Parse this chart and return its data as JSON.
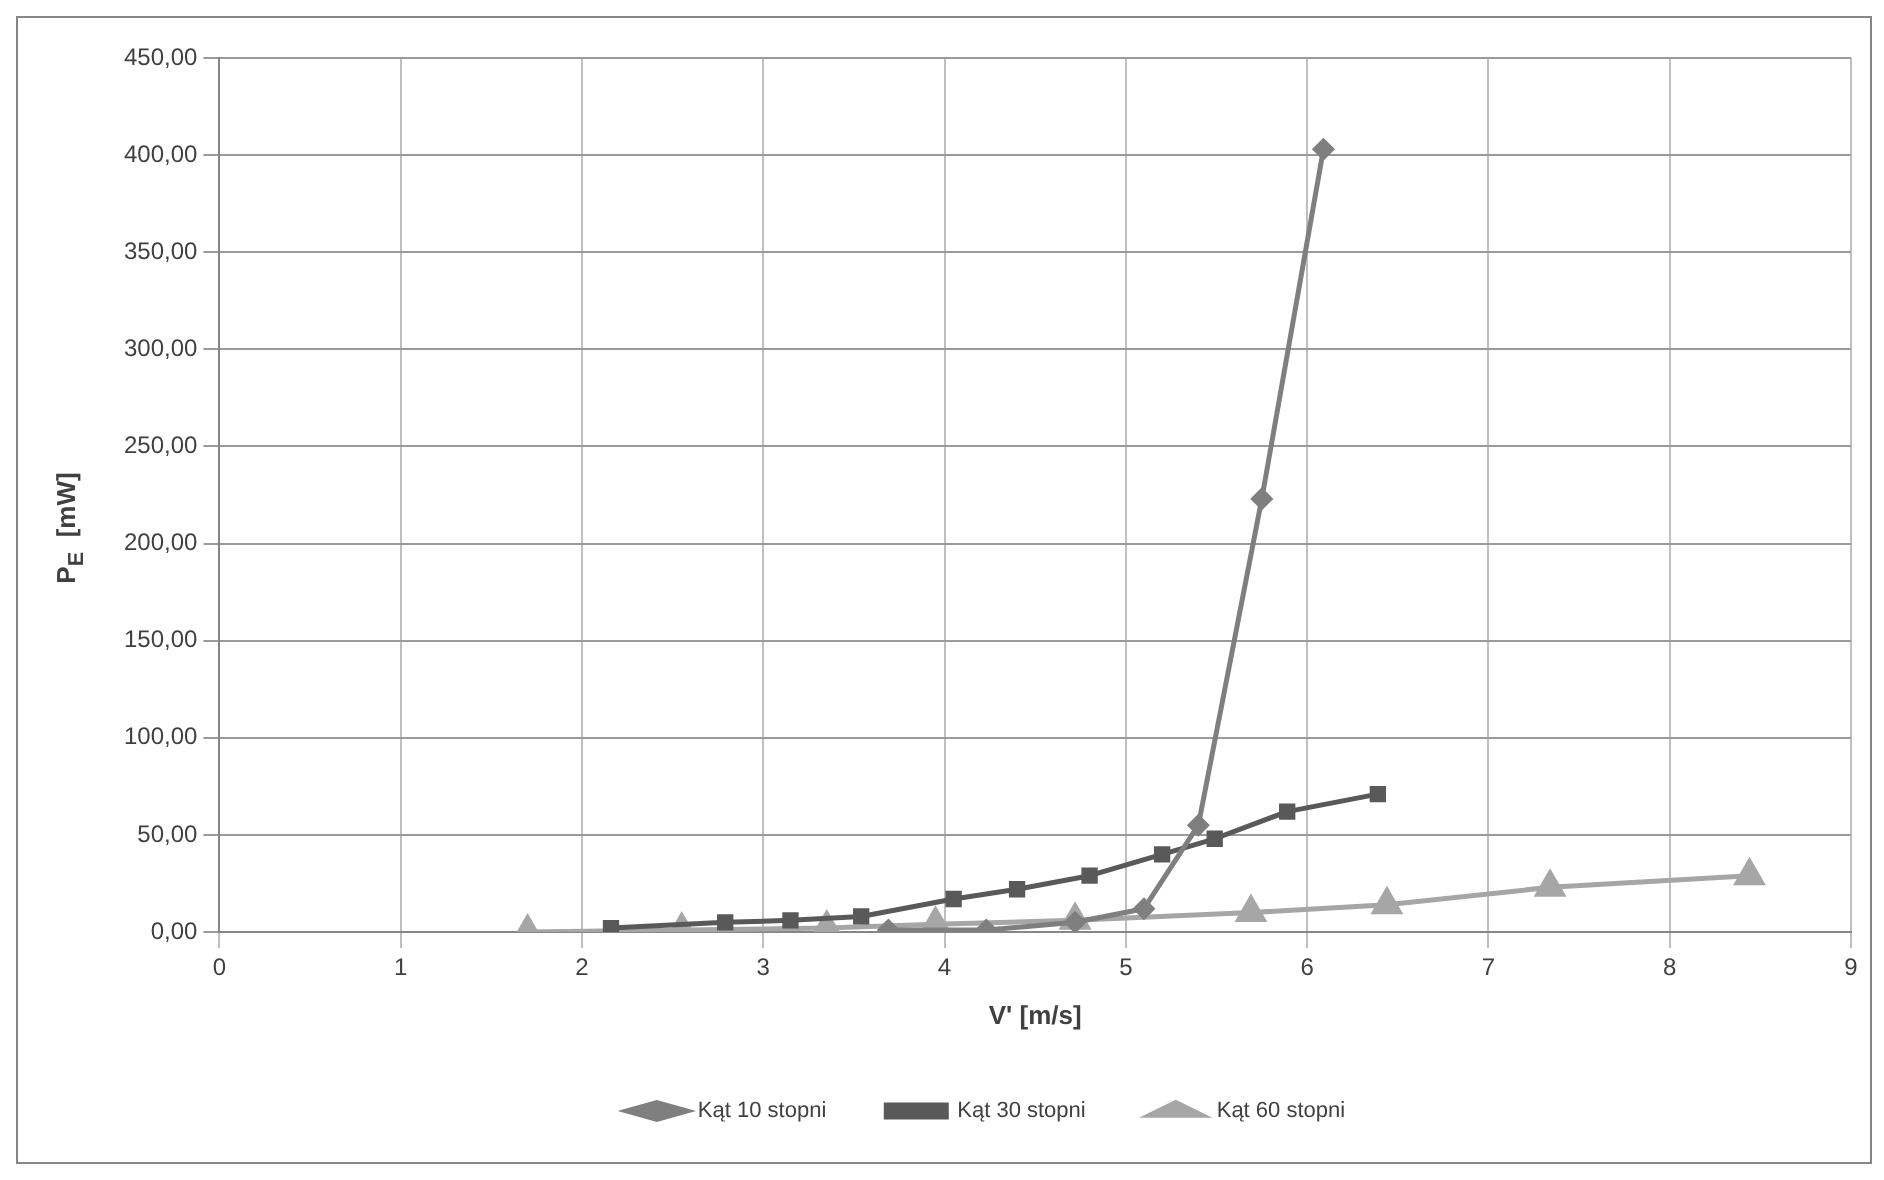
{
  "chart_data": {
    "type": "line",
    "xlabel": "V' [m/s]",
    "ylabel": "P$_{E}$  [mW]",
    "xlim": [
      0,
      9
    ],
    "xticks": [
      0,
      1,
      2,
      3,
      4,
      5,
      6,
      7,
      8,
      9
    ],
    "ylim": [
      0,
      450
    ],
    "yticks": [
      {
        "value": 0,
        "label": "0,00"
      },
      {
        "value": 50,
        "label": "50,00"
      },
      {
        "value": 100,
        "label": "100,00"
      },
      {
        "value": 150,
        "label": "150,00"
      },
      {
        "value": 200,
        "label": "200,00"
      },
      {
        "value": 250,
        "label": "250,00"
      },
      {
        "value": 300,
        "label": "300,00"
      },
      {
        "value": 350,
        "label": "350,00"
      },
      {
        "value": 400,
        "label": "400,00"
      },
      {
        "value": 450,
        "label": "450,00"
      }
    ],
    "grid": true,
    "legend": "bottom",
    "line_style": "solid",
    "series": [
      {
        "name": "Kąt 10 stopni",
        "color": "#7f7f7f",
        "marker": "diamond",
        "x": [
          3.69,
          4.23,
          4.72,
          5.1,
          5.4,
          5.75,
          6.09
        ],
        "values": [
          1,
          1,
          5,
          12,
          55,
          223,
          403
        ]
      },
      {
        "name": "Kąt 30 stopni",
        "color": "#595959",
        "marker": "square",
        "x": [
          2.16,
          2.79,
          3.15,
          3.54,
          4.05,
          4.4,
          4.8,
          5.2,
          5.49,
          5.89,
          6.39
        ],
        "values": [
          2,
          5,
          6,
          8,
          17,
          22,
          29,
          40,
          48,
          62,
          71
        ]
      },
      {
        "name": "Kąt 60 stopni",
        "color": "#a6a6a6",
        "marker": "triangle",
        "x": [
          1.7,
          2.55,
          3.35,
          3.95,
          4.72,
          5.69,
          6.44,
          7.34,
          8.44
        ],
        "values": [
          0,
          1,
          2,
          4,
          6,
          10,
          14,
          23,
          29
        ]
      }
    ]
  }
}
